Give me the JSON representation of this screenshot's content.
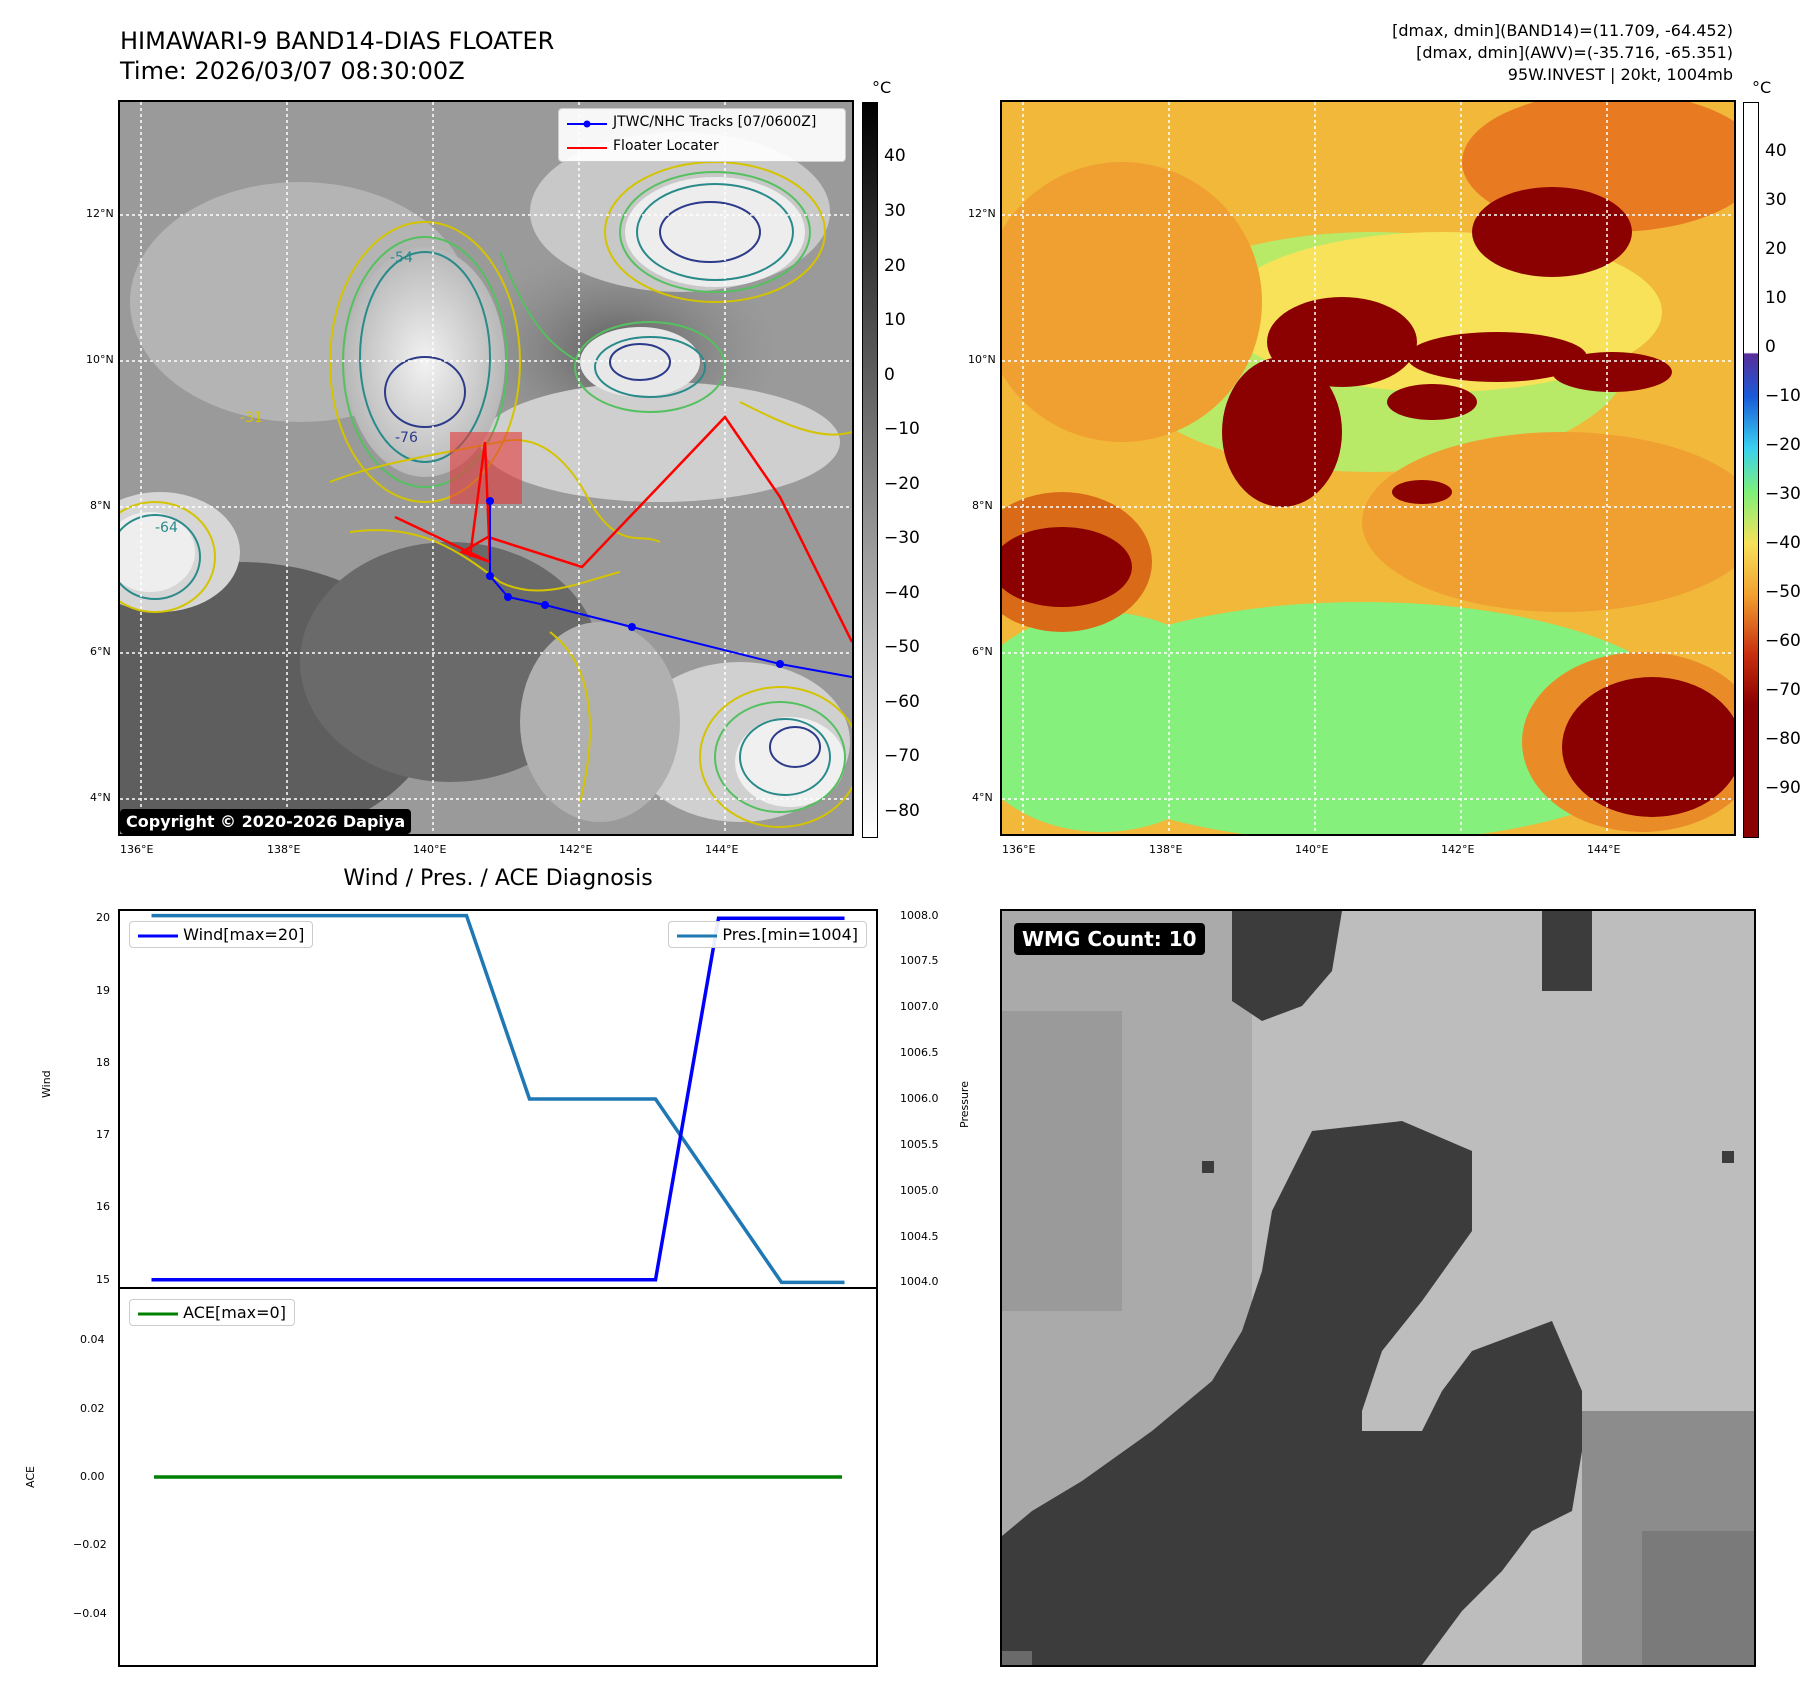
{
  "header": {
    "title_line1": "HIMAWARI-9 BAND14-DIAS FLOATER",
    "title_line2": "Time: 2026/03/07 08:30:00Z",
    "info_line1": "[dmax, dmin](BAND14)=(11.709, -64.452)",
    "info_line2": "[dmax, dmin](AWV)=(-35.716, -65.351)",
    "info_line3": "95W.INVEST | 20kt, 1004mb"
  },
  "map": {
    "lat_labels": [
      "12°N",
      "10°N",
      "8°N",
      "6°N",
      "4°N"
    ],
    "lon_labels": [
      "136°E",
      "138°E",
      "140°E",
      "142°E",
      "144°E"
    ],
    "legend_track": "JTWC/NHC Tracks [07/0600Z]",
    "legend_floater": "Floater Locater",
    "copyright": "Copyright © 2020-2026 Dapiya",
    "contour_labels": [
      "-31",
      "-54",
      "-64",
      "-76"
    ],
    "track_color": "#0000ff",
    "floater_color": "#ff0000"
  },
  "colorbar_left": {
    "unit": "°C",
    "ticks": [
      "40",
      "30",
      "20",
      "10",
      "0",
      "−10",
      "−20",
      "−30",
      "−40",
      "−50",
      "−60",
      "−70",
      "−80"
    ]
  },
  "colorbar_right": {
    "unit": "°C",
    "ticks": [
      "40",
      "30",
      "20",
      "10",
      "0",
      "−10",
      "−20",
      "−30",
      "−40",
      "−50",
      "−60",
      "−70",
      "−80",
      "−90"
    ]
  },
  "diagnosis": {
    "title": "Wind / Pres. / ACE Diagnosis",
    "wind_axis_label": "Wind",
    "pressure_axis_label": "Pressure",
    "ace_axis_label": "ACE"
  },
  "wmg": {
    "badge": "WMG Count: 10"
  },
  "chart_data": [
    {
      "type": "line",
      "title": "Wind / Pres. / ACE Diagnosis",
      "x": [
        0,
        1,
        2,
        3,
        4,
        5,
        6
      ],
      "series": [
        {
          "name": "Wind[max=20]",
          "axis": "left",
          "color": "#0000ff",
          "values": [
            15,
            15,
            15,
            15,
            15,
            15,
            20,
            20
          ],
          "x": [
            0,
            1,
            2,
            3,
            4,
            4.0,
            4.5,
            5.5
          ]
        },
        {
          "name": "Pres.[min=1004]",
          "axis": "right",
          "color": "#1f77b4",
          "values": [
            1008,
            1008,
            1008,
            1006,
            1006,
            1004,
            1004
          ],
          "x": [
            0,
            1.0,
            2.5,
            3.0,
            4.0,
            5.0,
            5.5
          ]
        }
      ],
      "ylabel_left": "Wind",
      "ylabel_right": "Pressure",
      "ylim_left": [
        14.9,
        20.1
      ],
      "ylim_right": [
        1003.95,
        1008.05
      ],
      "left_ticks": [
        "20",
        "19",
        "18",
        "17",
        "16",
        "15"
      ],
      "right_ticks": [
        "1008.0",
        "1007.5",
        "1007.0",
        "1006.5",
        "1006.0",
        "1005.5",
        "1005.0",
        "1004.5",
        "1004.0"
      ],
      "legend": [
        "top-left",
        "top-right"
      ],
      "grid": false
    },
    {
      "type": "line",
      "series": [
        {
          "name": "ACE[max=0]",
          "color": "#008000",
          "values": [
            0,
            0,
            0,
            0,
            0,
            0
          ]
        }
      ],
      "ylabel": "ACE",
      "ylim": [
        -0.055,
        0.055
      ],
      "ticks": [
        "0.04",
        "0.02",
        "0.00",
        "−0.02",
        "−0.04"
      ],
      "legend": "top-left",
      "grid": false
    }
  ]
}
